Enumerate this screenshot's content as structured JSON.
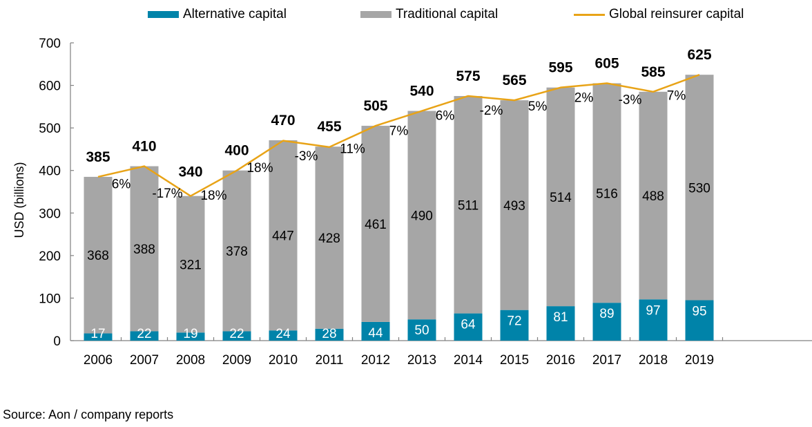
{
  "chart_data": {
    "type": "bar",
    "stacked": true,
    "title": "",
    "xlabel": "",
    "ylabel": "USD (billions)",
    "ylim": [
      0,
      700
    ],
    "yticks": [
      0,
      100,
      200,
      300,
      400,
      500,
      600,
      700
    ],
    "grid": false,
    "legend_position": "top-center",
    "categories": [
      "2006",
      "2007",
      "2008",
      "2009",
      "2010",
      "2011",
      "2012",
      "2013",
      "2014",
      "2015",
      "2016",
      "2017",
      "2018",
      "2019"
    ],
    "series": [
      {
        "name": "Alternative capital",
        "type": "bar",
        "color": "#0083A9",
        "values": [
          17,
          22,
          19,
          22,
          24,
          28,
          44,
          50,
          64,
          72,
          81,
          89,
          97,
          95
        ]
      },
      {
        "name": "Traditional capital",
        "type": "bar",
        "color": "#A6A6A6",
        "values": [
          368,
          388,
          321,
          378,
          447,
          428,
          461,
          490,
          511,
          493,
          514,
          516,
          488,
          530
        ]
      },
      {
        "name": "Global reinsurer capital",
        "type": "line",
        "color": "#E8A317",
        "values": [
          385,
          410,
          340,
          400,
          470,
          455,
          505,
          540,
          575,
          565,
          595,
          605,
          585,
          625
        ]
      }
    ],
    "growth_labels": [
      "6%",
      "-17%",
      "18%",
      "18%",
      "-3%",
      "11%",
      "7%",
      "6%",
      "-2%",
      "5%",
      "2%",
      "-3%",
      "7%"
    ],
    "source": "Source: Aon / company reports"
  }
}
